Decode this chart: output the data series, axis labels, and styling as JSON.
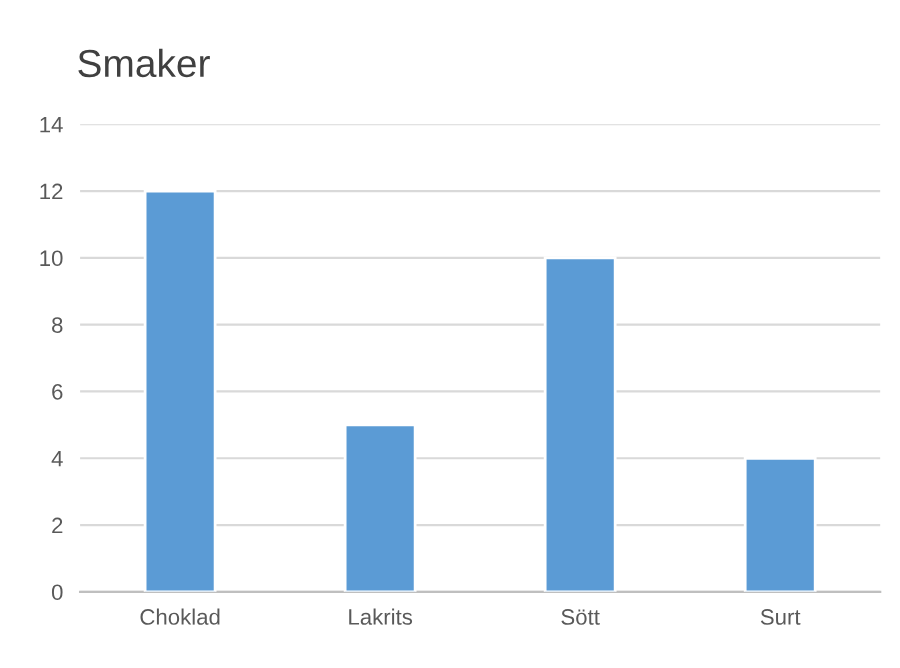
{
  "chart_data": {
    "type": "bar",
    "title": "Smaker",
    "categories": [
      "Choklad",
      "Lakrits",
      "Sött",
      "Surt"
    ],
    "values": [
      12,
      5,
      10,
      4
    ],
    "color": "#5b9bd5",
    "ylim": [
      0,
      14
    ],
    "yticks": [
      0,
      2,
      4,
      6,
      8,
      10,
      12,
      14
    ],
    "grid": "y",
    "legend": false
  }
}
